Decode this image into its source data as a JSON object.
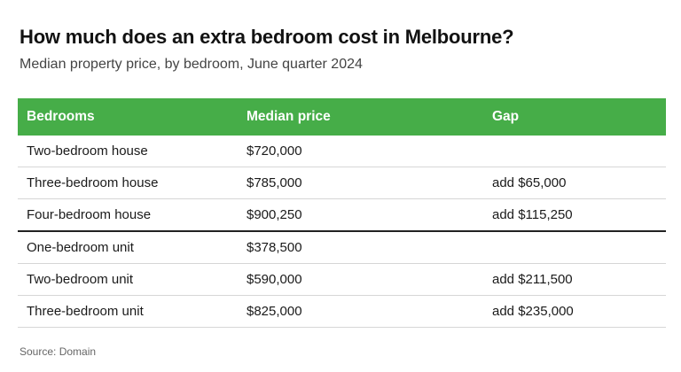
{
  "title": "How much does an extra bedroom cost in Melbourne?",
  "subtitle": "Median property price, by bedroom, June quarter 2024",
  "source": "Source: Domain",
  "colors": {
    "header_bg": "#46ad48",
    "header_text": "#ffffff"
  },
  "chart_data": {
    "type": "table",
    "columns": [
      "Bedrooms",
      "Median price",
      "Gap"
    ],
    "rows": [
      [
        "Two-bedroom house",
        "$720,000",
        ""
      ],
      [
        "Three-bedroom house",
        "$785,000",
        "add $65,000"
      ],
      [
        "Four-bedroom house",
        "$900,250",
        "add $115,250"
      ],
      [
        "One-bedroom unit",
        "$378,500",
        ""
      ],
      [
        "Two-bedroom unit",
        "$590,000",
        "add $211,500"
      ],
      [
        "Three-bedroom unit",
        "$825,000",
        "add $235,000"
      ]
    ]
  }
}
